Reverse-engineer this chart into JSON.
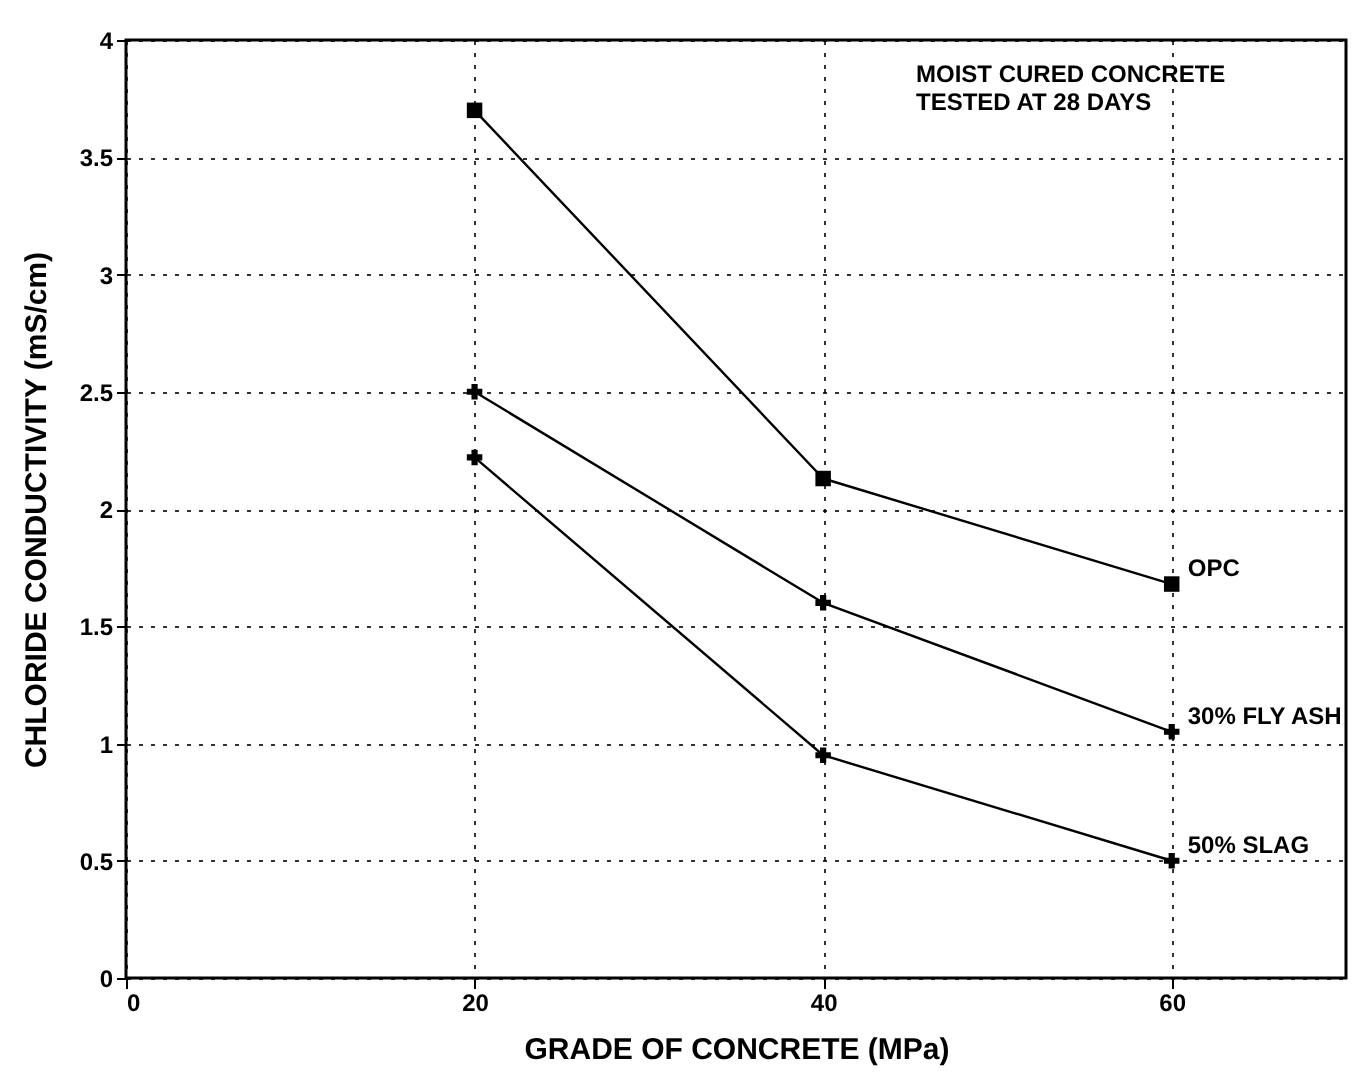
{
  "chart_data": {
    "type": "line",
    "xlabel": "GRADE OF CONCRETE (MPa)",
    "ylabel": "CHLORIDE CONDUCTIVITY (mS/cm)",
    "x": [
      20,
      40,
      60
    ],
    "series": [
      {
        "name": "OPC",
        "color": "#000000",
        "values": [
          3.7,
          2.13,
          1.68
        ],
        "marker": "square"
      },
      {
        "name": "30% FLY ASH",
        "color": "#000000",
        "values": [
          2.5,
          1.6,
          1.05
        ],
        "marker": "cross"
      },
      {
        "name": "50% SLAG",
        "color": "#000000",
        "values": [
          2.22,
          0.95,
          0.5
        ],
        "marker": "cross"
      }
    ],
    "xlim": [
      0,
      70
    ],
    "xticks": [
      0,
      20,
      40,
      60
    ],
    "ylim": [
      0,
      4
    ],
    "yticks": [
      0,
      0.5,
      1,
      1.5,
      2,
      2.5,
      3,
      3.5,
      4
    ],
    "grid": true,
    "legend": false,
    "line_style": "solid",
    "annotations": [
      "MOIST CURED CONCRETE",
      "TESTED AT 28 DAYS"
    ]
  }
}
